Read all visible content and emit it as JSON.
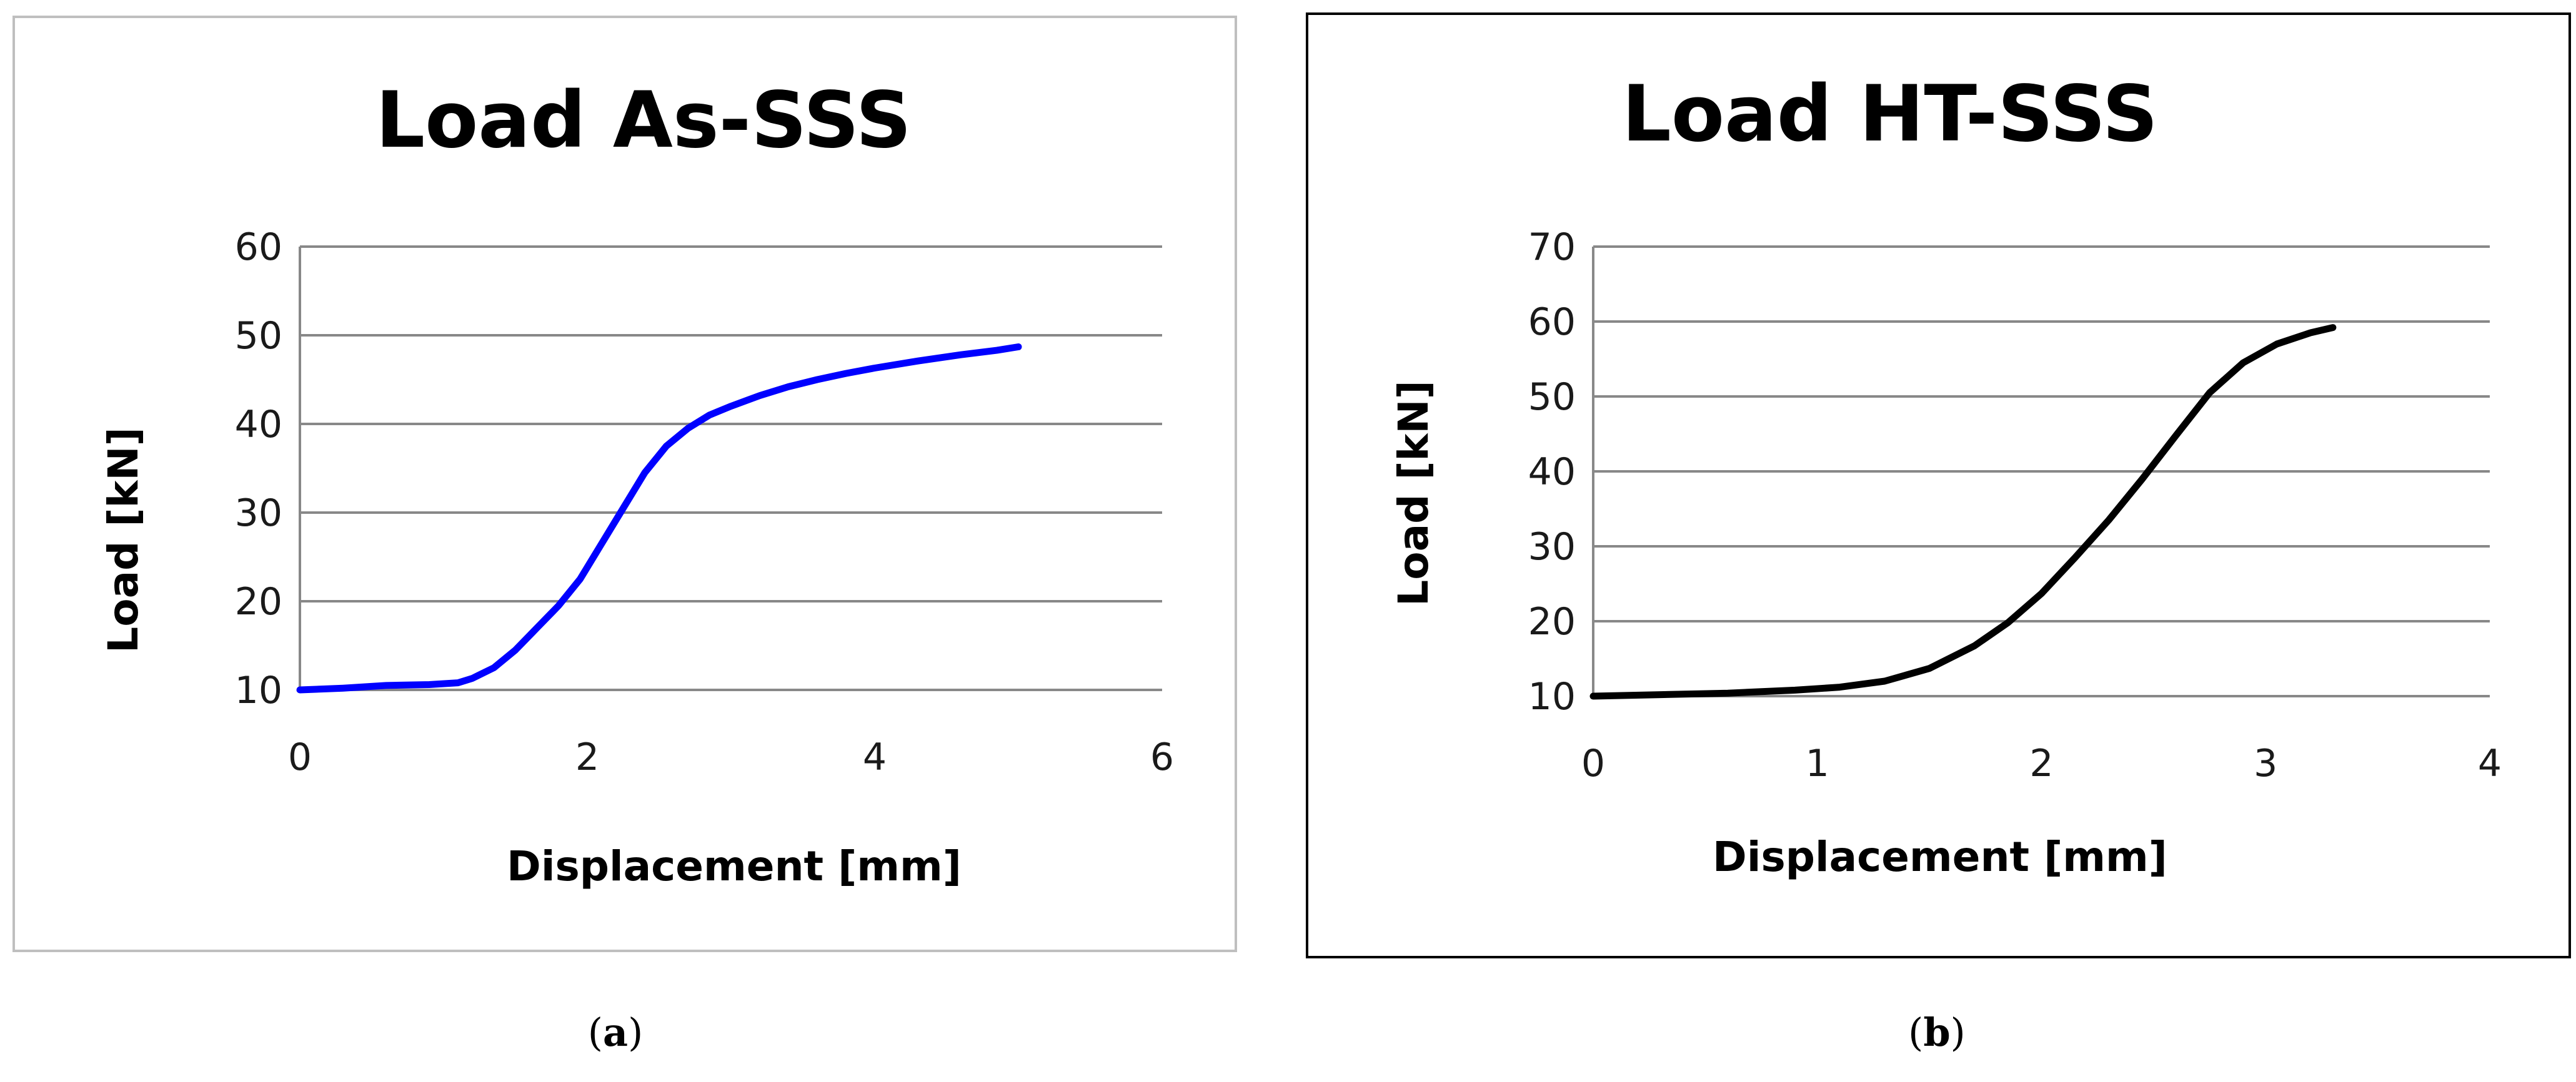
{
  "colors": {
    "frame_a": "#bfbfbf",
    "frame_b": "#000000",
    "grid": "#888888",
    "series_a": "#0000ff",
    "series_b": "#000000"
  },
  "captions": [
    {
      "open": "(",
      "letter": "a",
      "close": ")"
    },
    {
      "open": "(",
      "letter": "b",
      "close": ")"
    }
  ],
  "chart_data": [
    {
      "type": "line",
      "title": "Load As-SSS",
      "xlabel": "Displacement [mm]",
      "ylabel": "Load [kN]",
      "xlim": [
        0,
        6
      ],
      "ylim": [
        10,
        60
      ],
      "xticks": [
        0,
        2,
        4,
        6
      ],
      "yticks": [
        10,
        20,
        30,
        40,
        50,
        60
      ],
      "grid": true,
      "series": [
        {
          "x": [
            0,
            0.3,
            0.6,
            0.9,
            1.1,
            1.2,
            1.35,
            1.5,
            1.65,
            1.8,
            1.95,
            2.1,
            2.25,
            2.4,
            2.55,
            2.7,
            2.85,
            3.0,
            3.2,
            3.4,
            3.6,
            3.8,
            4.0,
            4.3,
            4.6,
            4.85,
            5.0
          ],
          "y": [
            10,
            10.2,
            10.5,
            10.6,
            10.8,
            11.3,
            12.5,
            14.5,
            17.0,
            19.5,
            22.5,
            26.5,
            30.5,
            34.5,
            37.5,
            39.5,
            41.0,
            42.0,
            43.2,
            44.2,
            45.0,
            45.7,
            46.3,
            47.1,
            47.8,
            48.3,
            48.7
          ]
        }
      ]
    },
    {
      "type": "line",
      "title": "Load HT-SSS",
      "xlabel": "Displacement [mm]",
      "ylabel": "Load [kN]",
      "xlim": [
        0,
        4
      ],
      "ylim": [
        10,
        70
      ],
      "xticks": [
        0,
        1,
        2,
        3,
        4
      ],
      "yticks": [
        10,
        20,
        30,
        40,
        50,
        60,
        70
      ],
      "grid": true,
      "series": [
        {
          "x": [
            0,
            0.3,
            0.6,
            0.9,
            1.1,
            1.3,
            1.5,
            1.7,
            1.85,
            2.0,
            2.15,
            2.3,
            2.45,
            2.6,
            2.75,
            2.9,
            3.05,
            3.2,
            3.3
          ],
          "y": [
            10,
            10.2,
            10.4,
            10.8,
            11.2,
            12.0,
            13.7,
            16.7,
            19.8,
            23.7,
            28.5,
            33.5,
            39.0,
            44.8,
            50.5,
            54.5,
            57.0,
            58.5,
            59.2
          ]
        }
      ]
    }
  ]
}
